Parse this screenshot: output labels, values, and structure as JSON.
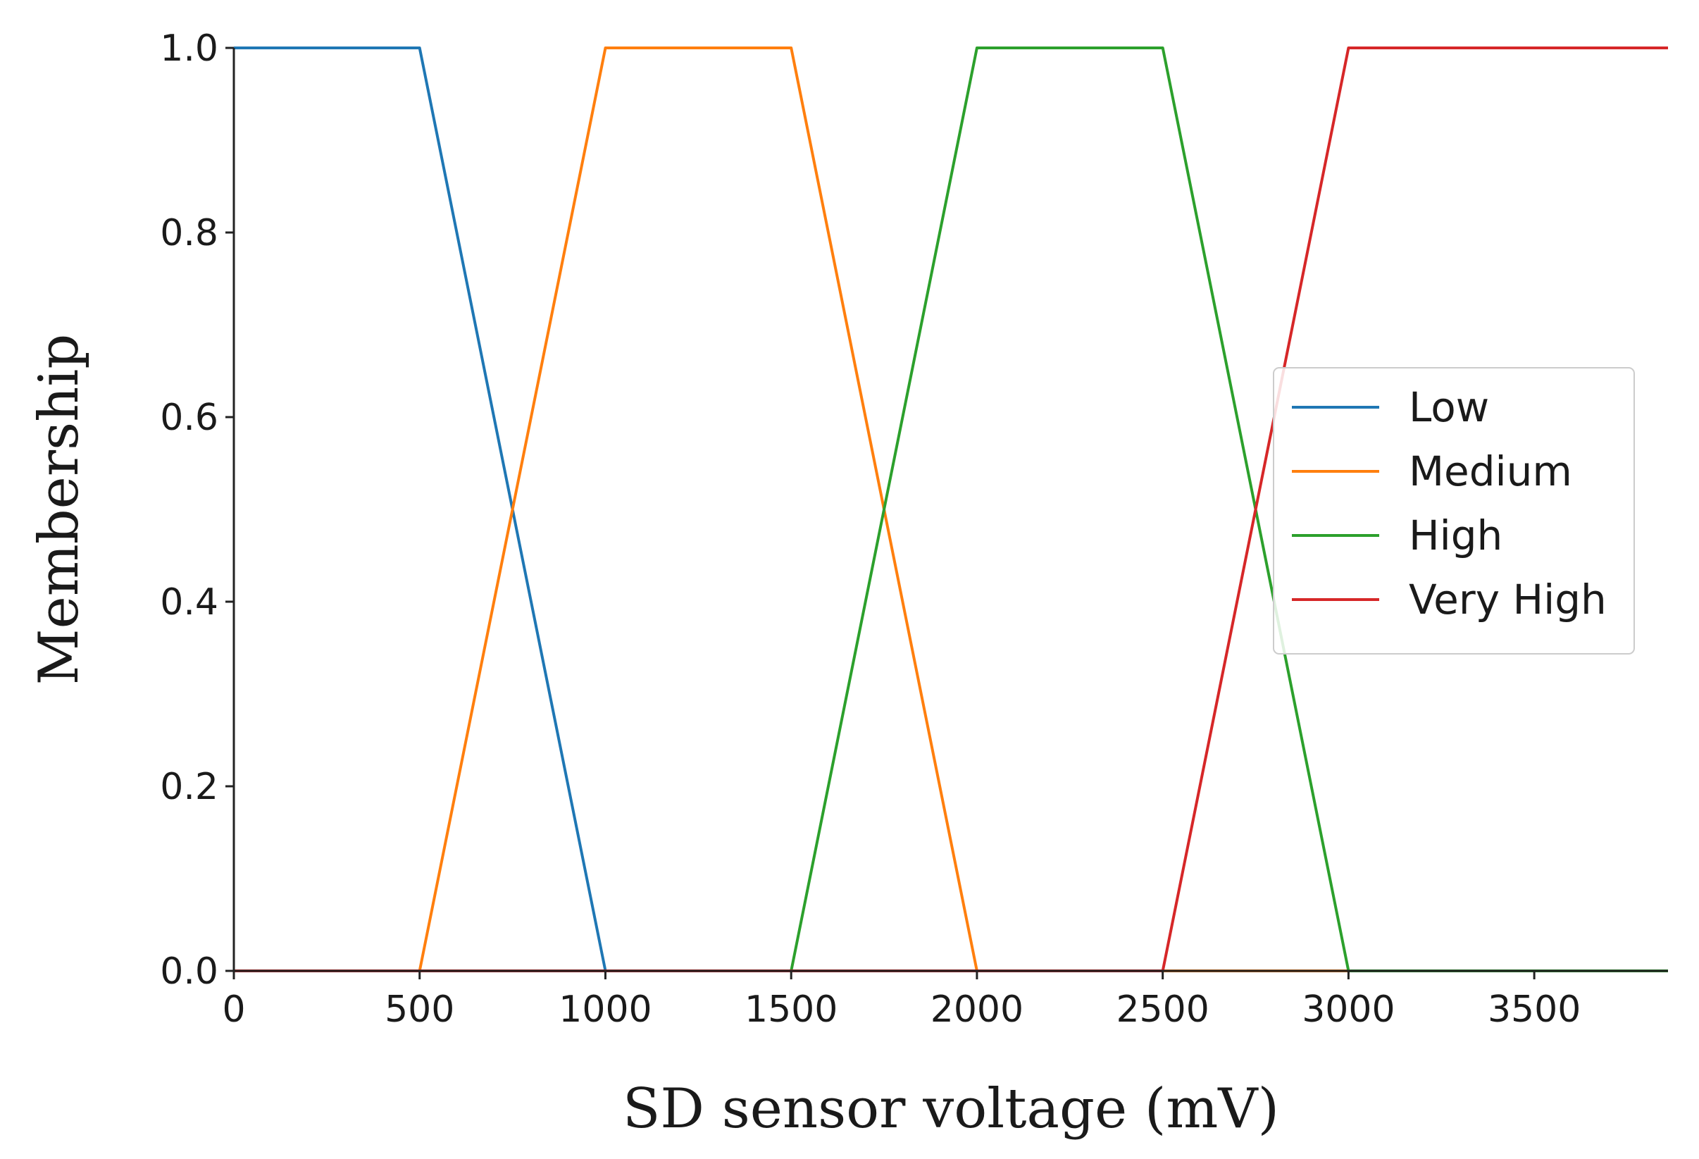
{
  "chart_data": {
    "type": "line",
    "title": "",
    "xlabel": "SD sensor voltage (mV)",
    "ylabel": "Membership",
    "xlim": [
      0,
      3860
    ],
    "ylim": [
      0,
      1.0
    ],
    "xticks": [
      0,
      500,
      1000,
      1500,
      2000,
      2500,
      3000,
      3500
    ],
    "yticks": [
      "0.0",
      "0.2",
      "0.4",
      "0.6",
      "0.8",
      "1.0"
    ],
    "grid": false,
    "legend": "center-right",
    "series": [
      {
        "name": "Low",
        "color": "#1f77b4",
        "points": [
          [
            0,
            1.0
          ],
          [
            500,
            1.0
          ],
          [
            1000,
            0.0
          ],
          [
            3860,
            0.0
          ]
        ]
      },
      {
        "name": "Medium",
        "color": "#ff7f0e",
        "points": [
          [
            0,
            0.0
          ],
          [
            500,
            0.0
          ],
          [
            1000,
            1.0
          ],
          [
            1500,
            1.0
          ],
          [
            2000,
            0.0
          ],
          [
            3860,
            0.0
          ]
        ]
      },
      {
        "name": "High",
        "color": "#2ca02c",
        "points": [
          [
            0,
            0.0
          ],
          [
            1500,
            0.0
          ],
          [
            2000,
            1.0
          ],
          [
            2500,
            1.0
          ],
          [
            3000,
            0.0
          ],
          [
            3860,
            0.0
          ]
        ]
      },
      {
        "name": "Very High",
        "color": "#d62728",
        "points": [
          [
            0,
            0.0
          ],
          [
            2500,
            0.0
          ],
          [
            3000,
            1.0
          ],
          [
            3860,
            1.0
          ]
        ]
      }
    ]
  }
}
